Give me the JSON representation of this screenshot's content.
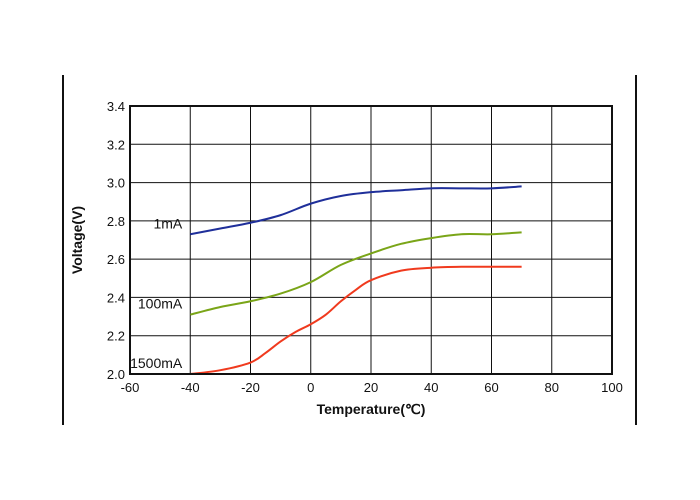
{
  "chart_data": {
    "type": "line",
    "xlabel": "Temperature(℃)",
    "ylabel": "Voltage(V)",
    "xlim": [
      -60,
      100
    ],
    "ylim": [
      2.0,
      3.4
    ],
    "xticks": [
      "-60",
      "-40",
      "-20",
      "0",
      "20",
      "40",
      "60",
      "80",
      "100"
    ],
    "yticks": [
      "2.0",
      "2.2",
      "2.4",
      "2.6",
      "2.8",
      "3.0",
      "3.2",
      "3.4"
    ],
    "grid": true,
    "series": [
      {
        "name": "1mA",
        "color": "#1f2f9a",
        "points": [
          [
            -40,
            2.73
          ],
          [
            -30,
            2.76
          ],
          [
            -20,
            2.79
          ],
          [
            -10,
            2.83
          ],
          [
            0,
            2.89
          ],
          [
            10,
            2.93
          ],
          [
            20,
            2.95
          ],
          [
            30,
            2.96
          ],
          [
            40,
            2.97
          ],
          [
            50,
            2.97
          ],
          [
            60,
            2.97
          ],
          [
            70,
            2.98
          ]
        ]
      },
      {
        "name": "100mA",
        "color": "#7aa518",
        "points": [
          [
            -40,
            2.31
          ],
          [
            -30,
            2.35
          ],
          [
            -20,
            2.38
          ],
          [
            -10,
            2.42
          ],
          [
            0,
            2.48
          ],
          [
            10,
            2.57
          ],
          [
            20,
            2.63
          ],
          [
            30,
            2.68
          ],
          [
            40,
            2.71
          ],
          [
            50,
            2.73
          ],
          [
            60,
            2.73
          ],
          [
            70,
            2.74
          ]
        ]
      },
      {
        "name": "1500mA",
        "color": "#f03a1e",
        "points": [
          [
            -40,
            2.0
          ],
          [
            -30,
            2.02
          ],
          [
            -20,
            2.06
          ],
          [
            -15,
            2.11
          ],
          [
            -10,
            2.17
          ],
          [
            -5,
            2.22
          ],
          [
            0,
            2.26
          ],
          [
            5,
            2.31
          ],
          [
            10,
            2.38
          ],
          [
            15,
            2.44
          ],
          [
            20,
            2.49
          ],
          [
            30,
            2.54
          ],
          [
            40,
            2.555
          ],
          [
            50,
            2.56
          ],
          [
            60,
            2.56
          ],
          [
            70,
            2.56
          ]
        ]
      }
    ]
  }
}
